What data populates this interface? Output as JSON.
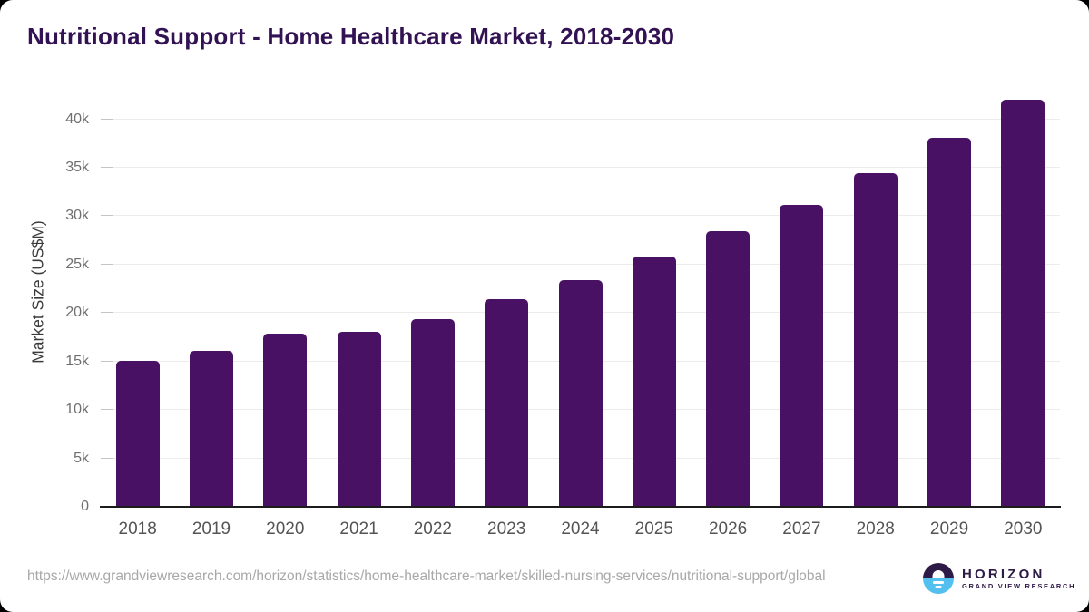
{
  "page": {
    "background_color": "#000000",
    "card_background_color": "#ffffff"
  },
  "title": {
    "text": "Nutritional Support - Home Healthcare Market, 2018-2030",
    "color": "#321253"
  },
  "chart_data": {
    "type": "bar",
    "title": "Nutritional Support - Home Healthcare Market, 2018-2030",
    "categories": [
      "2018",
      "2019",
      "2020",
      "2021",
      "2022",
      "2023",
      "2024",
      "2025",
      "2026",
      "2027",
      "2028",
      "2029",
      "2030"
    ],
    "values": [
      15100,
      16100,
      17900,
      18100,
      19400,
      21400,
      23400,
      25800,
      28400,
      31200,
      34400,
      38100,
      42000
    ],
    "xlabel": "",
    "ylabel": "Market Size (US$M)",
    "ylim": [
      0,
      44000
    ],
    "yticks": [
      0,
      5000,
      10000,
      15000,
      20000,
      25000,
      30000,
      35000,
      40000
    ],
    "ytick_labels": [
      "0",
      "5k",
      "10k",
      "15k",
      "20k",
      "25k",
      "30k",
      "35k",
      "40k"
    ],
    "grid": true,
    "legend": "none",
    "bar_color": "#481164",
    "gridline_color": "#ececec",
    "axis_line_color": "#1c1c1c",
    "tick_label_color": "#6e6e6e",
    "x_label_color": "#545454"
  },
  "footer": {
    "source_url": "https://www.grandviewresearch.com/horizon/statistics/home-healthcare-market/skilled-nursing-services/nutritional-support/global",
    "logo": {
      "brand": "HORIZON",
      "sub_brand": "GRAND VIEW RESEARCH",
      "brand_color": "#2e1a47",
      "icon_top_color": "#2e1a47",
      "icon_bottom_color": "#54c0ef"
    }
  }
}
